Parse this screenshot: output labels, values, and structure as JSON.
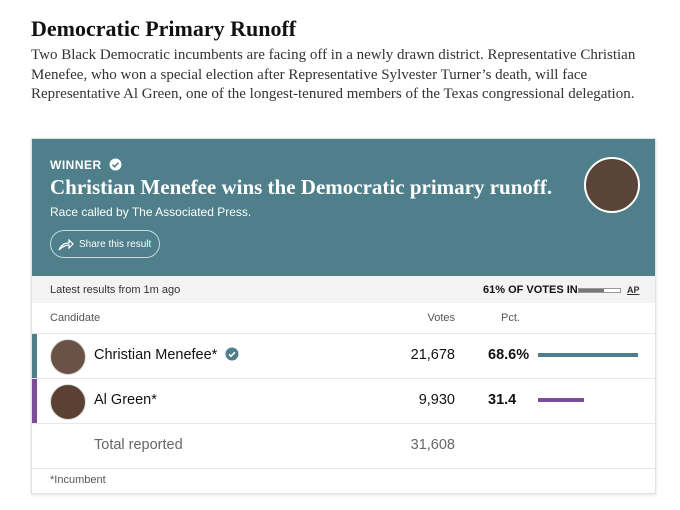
{
  "header": {
    "title": "Democratic Primary Runoff",
    "description": "Two Black Democratic incumbents are facing off in a newly drawn district. Representative Christian Menefee, who won a special election after Representative Sylvester Turner’s death, will face Representative Al Green, one of the longest-tenured members of the Texas congressional delegation."
  },
  "result": {
    "winner_label": "WINNER",
    "headline": "Christian Menefee wins the Democratic primary runoff.",
    "called_by": "Race called by The Associated Press.",
    "share": "Share this result"
  },
  "status": {
    "updated": "Latest results from 1m ago",
    "votes_in": {
      "value": 61,
      "label": "61% OF VOTES IN"
    },
    "source": "AP"
  },
  "table": {
    "columns": [
      "Candidate",
      "Votes",
      "Pct."
    ],
    "rows": [
      {
        "name": "Christian Menefee*",
        "votes": "21,678",
        "pct": {
          "value": 68.6,
          "label": "68.6%"
        },
        "color": "#4e7f8a"
      },
      {
        "name": "Al Green*",
        "votes": "9,930",
        "pct": {
          "value": 31.4,
          "label": "31.4"
        },
        "color": "#7a4c9a"
      }
    ],
    "total": {
      "label": "Total reported",
      "votes": "31,608"
    },
    "footnote": "*Incumbent"
  }
}
